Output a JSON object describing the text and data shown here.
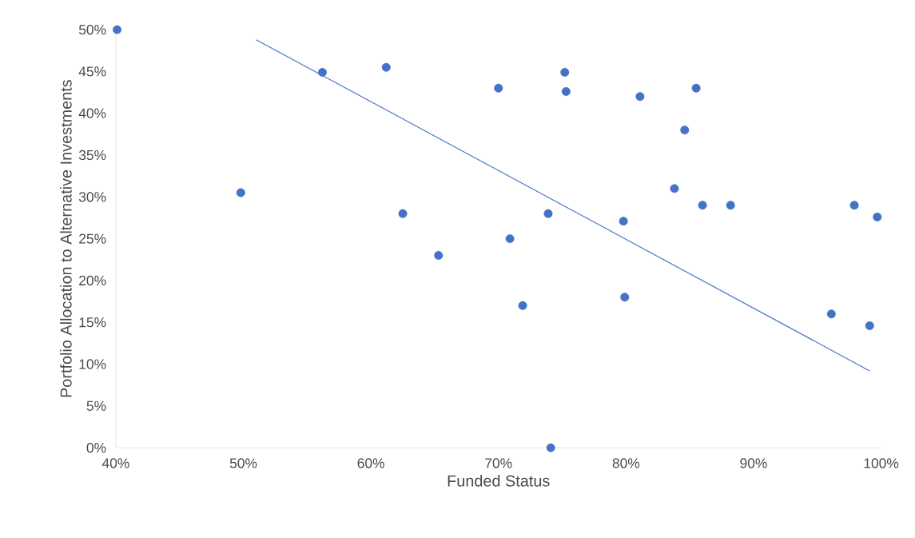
{
  "chart_data": {
    "type": "scatter",
    "xlabel": "Funded Status",
    "ylabel": "Portfolio Allocation to Alternative Investments",
    "xlim": [
      40,
      100
    ],
    "ylim": [
      0,
      50
    ],
    "xticks": [
      {
        "value": 40,
        "label": "40%"
      },
      {
        "value": 50,
        "label": "50%"
      },
      {
        "value": 60,
        "label": "60%"
      },
      {
        "value": 70,
        "label": "70%"
      },
      {
        "value": 80,
        "label": "80%"
      },
      {
        "value": 90,
        "label": "90%"
      },
      {
        "value": 100,
        "label": "100%"
      }
    ],
    "yticks": [
      {
        "value": 0,
        "label": "0%"
      },
      {
        "value": 5,
        "label": "5%"
      },
      {
        "value": 10,
        "label": "10%"
      },
      {
        "value": 15,
        "label": "15%"
      },
      {
        "value": 20,
        "label": "20%"
      },
      {
        "value": 25,
        "label": "25%"
      },
      {
        "value": 30,
        "label": "30%"
      },
      {
        "value": 35,
        "label": "35%"
      },
      {
        "value": 40,
        "label": "40%"
      },
      {
        "value": 45,
        "label": "45%"
      },
      {
        "value": 50,
        "label": "50%"
      }
    ],
    "grid": false,
    "series": [
      {
        "marker": "circle",
        "color": "#4472c4",
        "x": [
          40.1,
          49.8,
          56.2,
          61.2,
          62.5,
          65.3,
          70.0,
          70.9,
          71.9,
          73.9,
          74.1,
          75.2,
          75.3,
          79.8,
          79.9,
          81.1,
          83.8,
          84.6,
          85.5,
          86.0,
          88.2,
          96.1,
          97.9,
          99.1,
          99.7
        ],
        "values": [
          50.0,
          30.5,
          44.9,
          45.5,
          28.0,
          23.0,
          43.0,
          25.0,
          17.0,
          28.0,
          0.0,
          44.9,
          42.6,
          27.1,
          18.0,
          42.0,
          31.0,
          38.0,
          43.0,
          29.0,
          29.0,
          16.0,
          29.0,
          14.6,
          27.6
        ]
      },
      {
        "type": "line",
        "color": "#4472c4",
        "x": [
          51.0,
          99.1
        ],
        "values": [
          48.8,
          9.2
        ]
      }
    ]
  }
}
